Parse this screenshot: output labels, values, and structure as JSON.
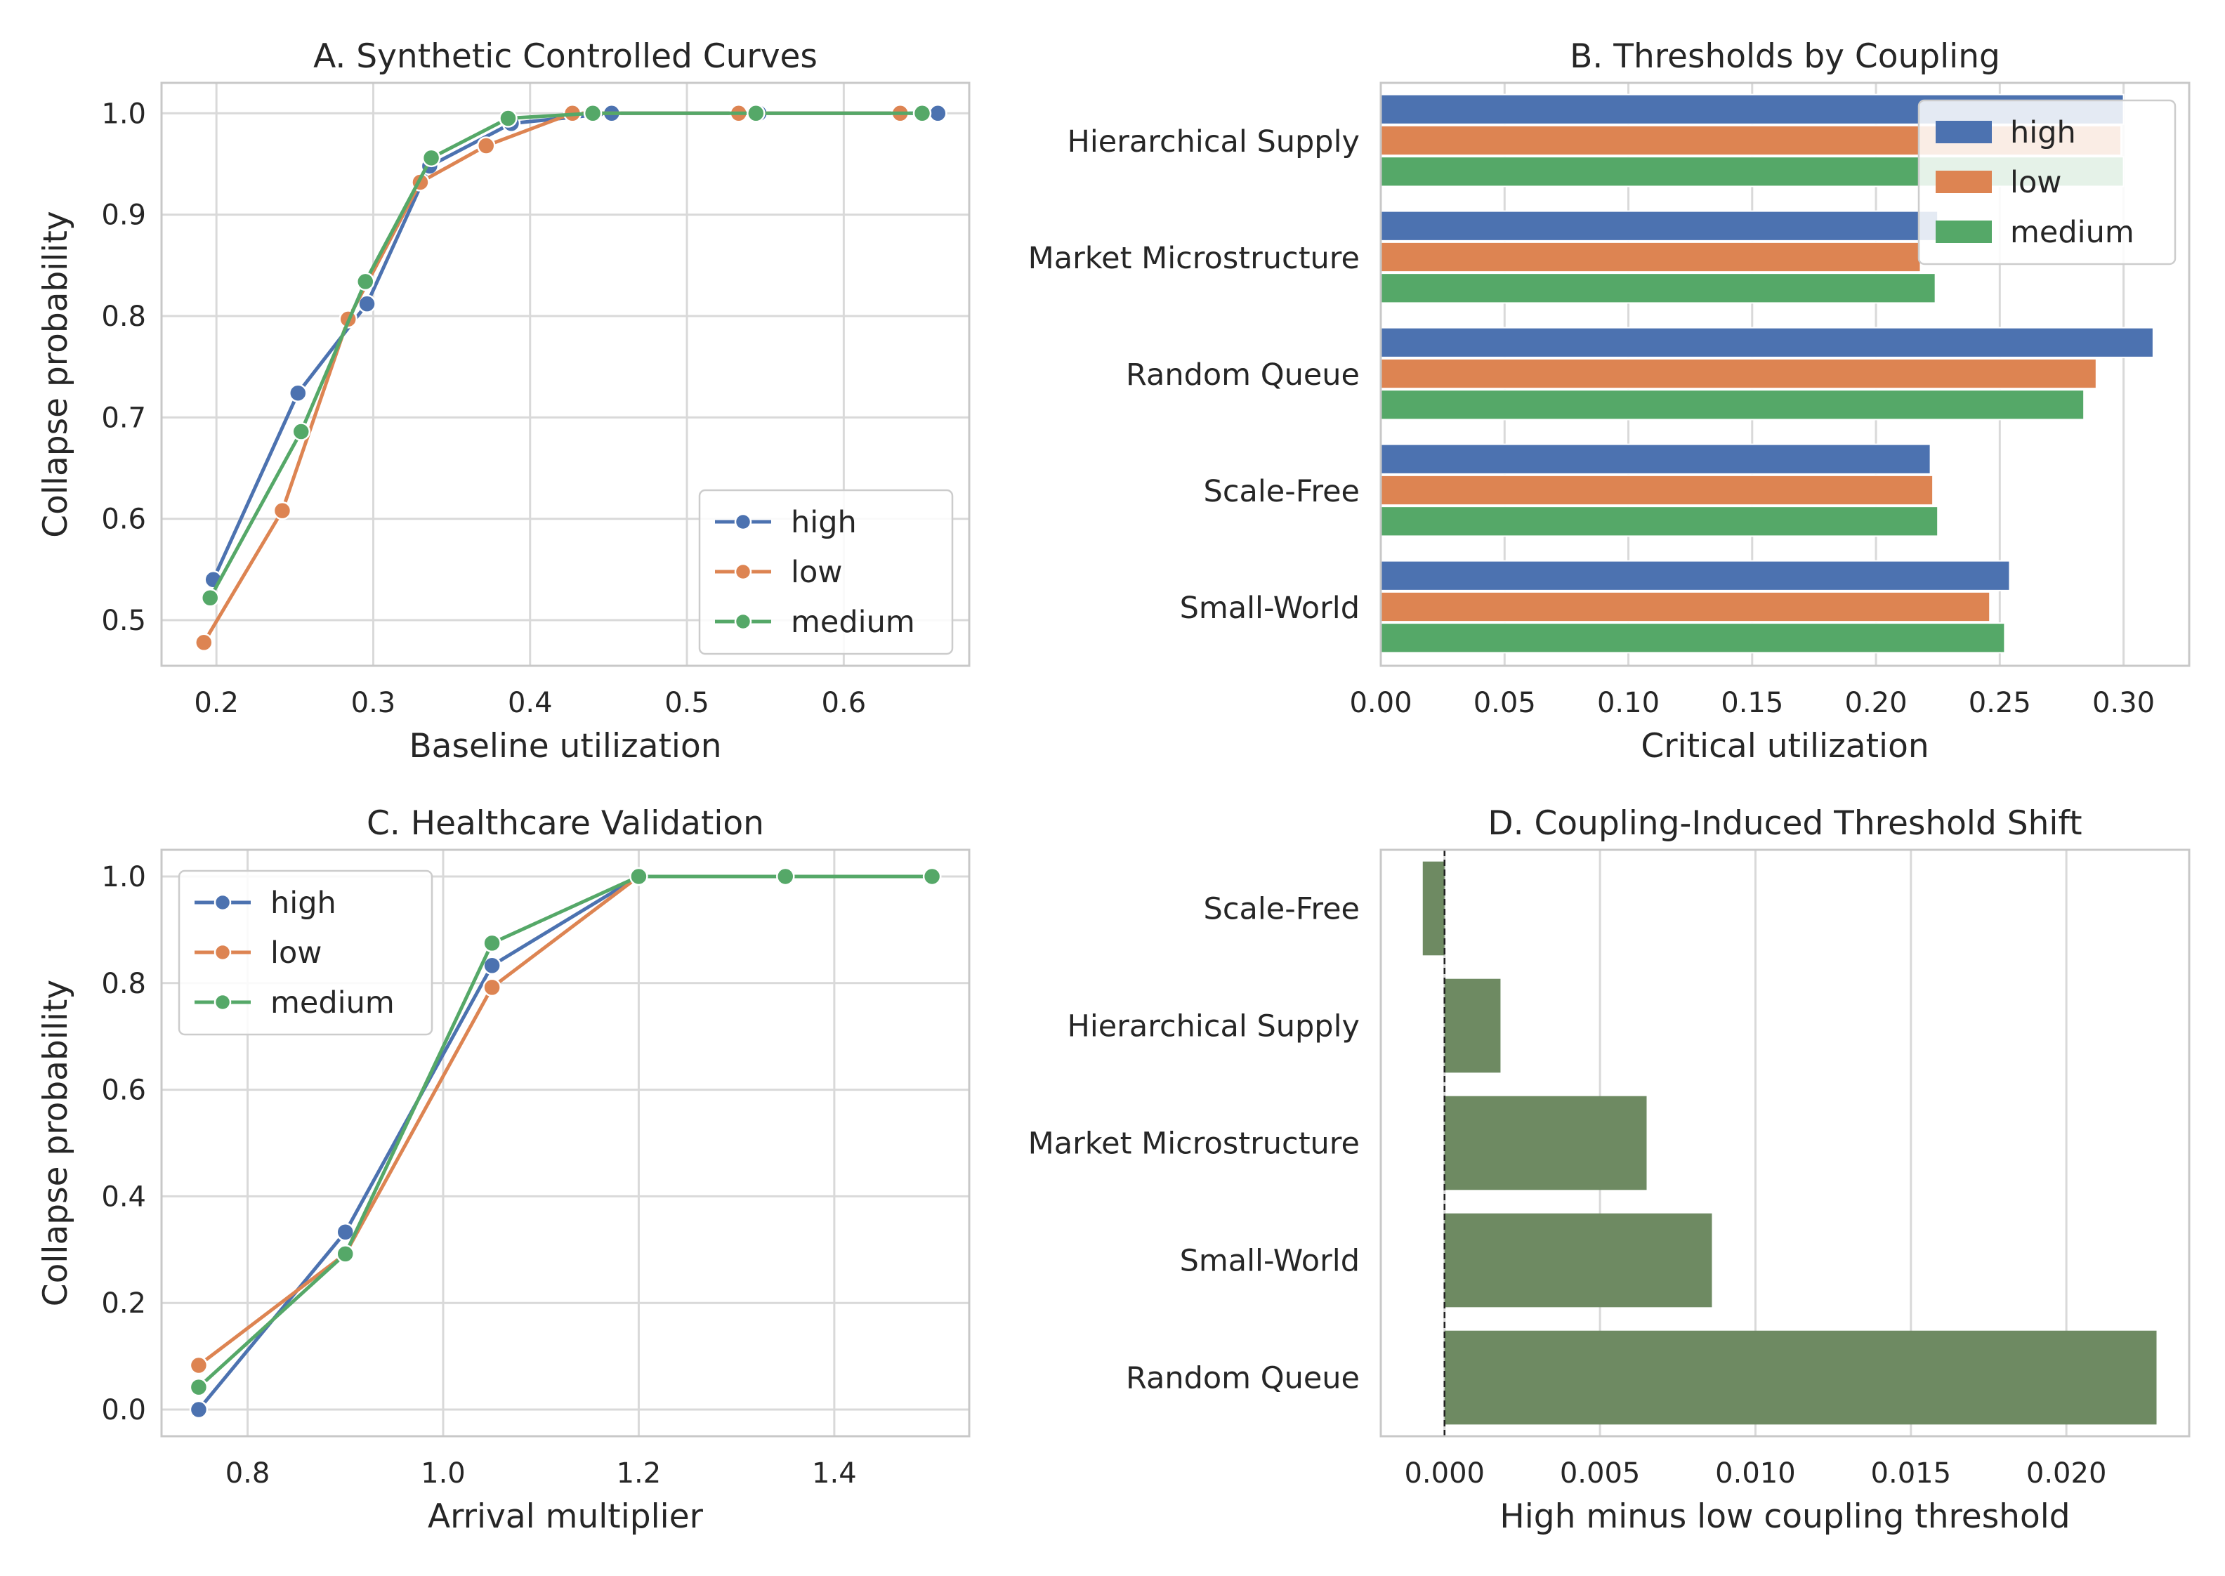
{
  "colors": {
    "high": "#4c72b0",
    "low": "#dd8452",
    "medium": "#55a868",
    "shift": "#6e8a62",
    "grid": "#d9d9d9",
    "frame": "#c8c8c8",
    "text": "#262626"
  },
  "chart_data": [
    {
      "id": "A",
      "type": "line",
      "title": "A. Synthetic Controlled Curves",
      "xlabel": "Baseline utilization",
      "ylabel": "Collapse probability",
      "xlim": [
        0.165,
        0.68
      ],
      "ylim": [
        0.455,
        1.03
      ],
      "xticks": [
        0.2,
        0.3,
        0.4,
        0.5,
        0.6
      ],
      "xtick_labels": [
        "0.2",
        "0.3",
        "0.4",
        "0.5",
        "0.6"
      ],
      "yticks": [
        0.5,
        0.6,
        0.7,
        0.8,
        0.9,
        1.0
      ],
      "ytick_labels": [
        "0.5",
        "0.6",
        "0.7",
        "0.8",
        "0.9",
        "1.0"
      ],
      "grid": true,
      "legend_position": "lower-right",
      "legend": [
        "high",
        "low",
        "medium"
      ],
      "series": [
        {
          "name": "high",
          "x": [
            0.198,
            0.252,
            0.296,
            0.336,
            0.388,
            0.452,
            0.546,
            0.66
          ],
          "y": [
            0.54,
            0.724,
            0.812,
            0.948,
            0.99,
            1.0,
            1.0,
            1.0
          ]
        },
        {
          "name": "low",
          "x": [
            0.192,
            0.242,
            0.284,
            0.33,
            0.372,
            0.427,
            0.533,
            0.636
          ],
          "y": [
            0.478,
            0.608,
            0.797,
            0.932,
            0.968,
            1.0,
            1.0,
            1.0
          ]
        },
        {
          "name": "medium",
          "x": [
            0.196,
            0.254,
            0.295,
            0.337,
            0.386,
            0.44,
            0.544,
            0.65
          ],
          "y": [
            0.522,
            0.686,
            0.834,
            0.956,
            0.995,
            1.0,
            1.0,
            1.0
          ]
        }
      ]
    },
    {
      "id": "B",
      "type": "bar",
      "orientation": "horizontal",
      "title": "B. Thresholds by Coupling",
      "xlabel": "Critical utilization",
      "ylabel": "",
      "xlim": [
        0,
        0.3265
      ],
      "xticks": [
        0,
        0.05,
        0.1,
        0.15,
        0.2,
        0.25,
        0.3
      ],
      "xtick_labels": [
        "0.00",
        "0.05",
        "0.10",
        "0.15",
        "0.20",
        "0.25",
        "0.30"
      ],
      "grid": true,
      "legend_position": "top-right",
      "legend": [
        "high",
        "low",
        "medium"
      ],
      "categories": [
        "Hierarchical Supply",
        "Market Microstructure",
        "Random Queue",
        "Scale-Free",
        "Small-World"
      ],
      "series": [
        {
          "name": "high",
          "values": [
            0.3,
            0.225,
            0.312,
            0.222,
            0.254
          ]
        },
        {
          "name": "low",
          "values": [
            0.299,
            0.218,
            0.289,
            0.223,
            0.246
          ]
        },
        {
          "name": "medium",
          "values": [
            0.3,
            0.224,
            0.284,
            0.225,
            0.252
          ]
        }
      ]
    },
    {
      "id": "C",
      "type": "line",
      "title": "C. Healthcare Validation",
      "xlabel": "Arrival multiplier",
      "ylabel": "Collapse probability",
      "xlim": [
        0.712,
        1.538
      ],
      "ylim": [
        -0.05,
        1.05
      ],
      "xticks": [
        0.8,
        1.0,
        1.2,
        1.4
      ],
      "xtick_labels": [
        "0.8",
        "1.0",
        "1.2",
        "1.4"
      ],
      "yticks": [
        0.0,
        0.2,
        0.4,
        0.6,
        0.8,
        1.0
      ],
      "ytick_labels": [
        "0.0",
        "0.2",
        "0.4",
        "0.6",
        "0.8",
        "1.0"
      ],
      "grid": true,
      "legend_position": "upper-left",
      "legend": [
        "high",
        "low",
        "medium"
      ],
      "series": [
        {
          "name": "high",
          "x": [
            0.75,
            0.9,
            1.05,
            1.2,
            1.35,
            1.5
          ],
          "y": [
            0.0,
            0.333,
            0.833,
            1.0,
            1.0,
            1.0
          ]
        },
        {
          "name": "low",
          "x": [
            0.75,
            0.9,
            1.05,
            1.2,
            1.35,
            1.5
          ],
          "y": [
            0.083,
            0.292,
            0.792,
            1.0,
            1.0,
            1.0
          ]
        },
        {
          "name": "medium",
          "x": [
            0.75,
            0.9,
            1.05,
            1.2,
            1.35,
            1.5
          ],
          "y": [
            0.042,
            0.292,
            0.875,
            1.0,
            1.0,
            1.0
          ]
        }
      ]
    },
    {
      "id": "D",
      "type": "bar",
      "orientation": "horizontal",
      "title": "D. Coupling-Induced Threshold Shift",
      "xlabel": "High minus low coupling threshold",
      "ylabel": "",
      "xlim": [
        -0.00205,
        0.02395
      ],
      "xticks": [
        0.0,
        0.005,
        0.01,
        0.015,
        0.02
      ],
      "xtick_labels": [
        "0.000",
        "0.005",
        "0.010",
        "0.015",
        "0.020"
      ],
      "grid": true,
      "reference_line": 0,
      "categories": [
        "Scale-Free",
        "Hierarchical Supply",
        "Market Microstructure",
        "Small-World",
        "Random Queue"
      ],
      "values": [
        -0.0007,
        0.0018,
        0.0065,
        0.0086,
        0.0229
      ]
    }
  ]
}
